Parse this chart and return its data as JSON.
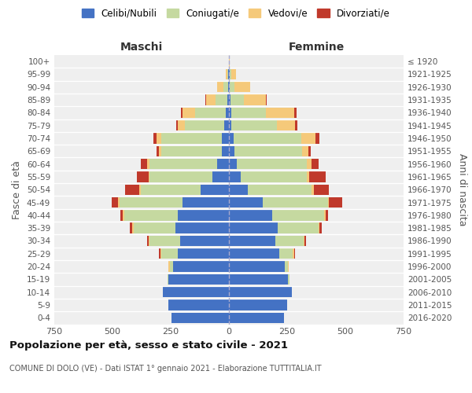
{
  "age_groups": [
    "0-4",
    "5-9",
    "10-14",
    "15-19",
    "20-24",
    "25-29",
    "30-34",
    "35-39",
    "40-44",
    "45-49",
    "50-54",
    "55-59",
    "60-64",
    "65-69",
    "70-74",
    "75-79",
    "80-84",
    "85-89",
    "90-94",
    "95-99",
    "100+"
  ],
  "birth_years": [
    "2016-2020",
    "2011-2015",
    "2006-2010",
    "2001-2005",
    "1996-2000",
    "1991-1995",
    "1986-1990",
    "1981-1985",
    "1976-1980",
    "1971-1975",
    "1966-1970",
    "1961-1965",
    "1956-1960",
    "1951-1955",
    "1946-1950",
    "1941-1945",
    "1936-1940",
    "1931-1935",
    "1926-1930",
    "1921-1925",
    "≤ 1920"
  ],
  "colors": {
    "celibi": "#4472C4",
    "coniugati": "#c5d9a0",
    "vedovi": "#f5c97a",
    "divorziati": "#c0392b"
  },
  "maschi": {
    "celibi": [
      245,
      260,
      285,
      260,
      240,
      220,
      210,
      230,
      220,
      200,
      120,
      70,
      50,
      30,
      30,
      20,
      15,
      8,
      5,
      2,
      0
    ],
    "coniugati": [
      0,
      0,
      0,
      5,
      15,
      70,
      130,
      180,
      230,
      270,
      260,
      270,
      290,
      260,
      260,
      170,
      130,
      50,
      20,
      5,
      0
    ],
    "vedovi": [
      0,
      0,
      0,
      0,
      5,
      5,
      5,
      5,
      5,
      5,
      5,
      5,
      10,
      10,
      20,
      30,
      55,
      40,
      25,
      5,
      0
    ],
    "divorziati": [
      0,
      0,
      0,
      0,
      0,
      5,
      5,
      10,
      10,
      30,
      60,
      50,
      30,
      10,
      15,
      5,
      5,
      5,
      0,
      0,
      0
    ]
  },
  "femmine": {
    "celibi": [
      235,
      250,
      270,
      255,
      240,
      215,
      200,
      210,
      185,
      145,
      80,
      50,
      35,
      25,
      20,
      10,
      10,
      8,
      5,
      5,
      0
    ],
    "coniugati": [
      0,
      0,
      0,
      5,
      12,
      60,
      120,
      175,
      225,
      280,
      275,
      285,
      300,
      290,
      290,
      195,
      150,
      55,
      20,
      5,
      0
    ],
    "vedovi": [
      0,
      0,
      0,
      0,
      5,
      5,
      5,
      5,
      5,
      5,
      10,
      10,
      20,
      25,
      60,
      80,
      120,
      95,
      65,
      20,
      2
    ],
    "divorziati": [
      0,
      0,
      0,
      0,
      0,
      5,
      5,
      10,
      10,
      55,
      65,
      70,
      30,
      10,
      20,
      10,
      10,
      5,
      0,
      0,
      0
    ]
  },
  "title": "Popolazione per età, sesso e stato civile - 2021",
  "subtitle": "COMUNE DI DOLO (VE) - Dati ISTAT 1° gennaio 2021 - Elaborazione TUTTITALIA.IT",
  "header_maschi": "Maschi",
  "header_femmine": "Femmine",
  "ylabel_left": "Fasce di età",
  "ylabel_right": "Anni di nascita",
  "xlim": 750,
  "bg_color": "#efefef",
  "legend_labels": [
    "Celibi/Nubili",
    "Coniugati/e",
    "Vedovi/e",
    "Divorziati/e"
  ]
}
